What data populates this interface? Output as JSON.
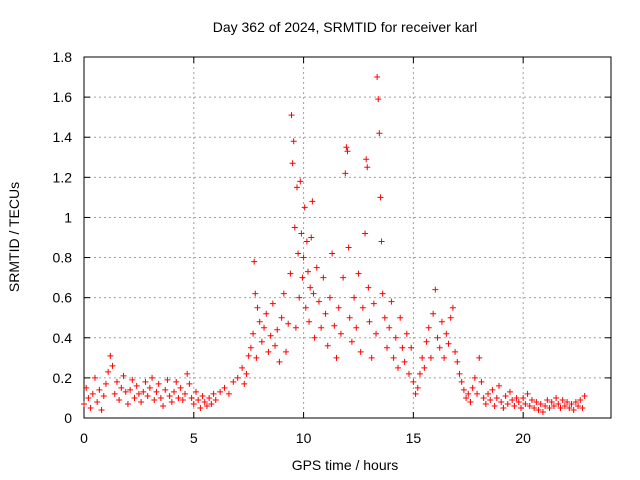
{
  "chart_data": {
    "type": "scatter",
    "title": "Day 362 of 2024, SRMTID for receiver karl",
    "xlabel": "GPS time / hours",
    "ylabel": "SRMTID / TECUs",
    "xlim": [
      0,
      24
    ],
    "ylim": [
      0,
      1.8
    ],
    "x_ticks": [
      0,
      5,
      10,
      15,
      20
    ],
    "x_tick_labels": [
      "0",
      "5",
      "10",
      "15",
      "20"
    ],
    "y_ticks": [
      0,
      0.2,
      0.4,
      0.6,
      0.8,
      1.0,
      1.2,
      1.4,
      1.6,
      1.8
    ],
    "y_tick_labels": [
      "0",
      "0.2",
      "0.4",
      "0.6",
      "0.8",
      "1",
      "1.2",
      "1.4",
      "1.6",
      "1.8"
    ],
    "grid": true,
    "marker": "+",
    "series_color": "#ff0000",
    "series": [
      {
        "name": "SRMTID",
        "points": [
          [
            0.0,
            0.07
          ],
          [
            0.1,
            0.15
          ],
          [
            0.2,
            0.1
          ],
          [
            0.3,
            0.05
          ],
          [
            0.4,
            0.12
          ],
          [
            0.5,
            0.2
          ],
          [
            0.6,
            0.08
          ],
          [
            0.7,
            0.14
          ],
          [
            0.8,
            0.04
          ],
          [
            0.9,
            0.11
          ],
          [
            1.0,
            0.17
          ],
          [
            1.1,
            0.23
          ],
          [
            1.2,
            0.31
          ],
          [
            1.3,
            0.26
          ],
          [
            1.4,
            0.12
          ],
          [
            1.5,
            0.18
          ],
          [
            1.6,
            0.09
          ],
          [
            1.7,
            0.15
          ],
          [
            1.8,
            0.21
          ],
          [
            1.9,
            0.13
          ],
          [
            2.0,
            0.07
          ],
          [
            2.1,
            0.14
          ],
          [
            2.2,
            0.19
          ],
          [
            2.3,
            0.1
          ],
          [
            2.4,
            0.16
          ],
          [
            2.5,
            0.12
          ],
          [
            2.6,
            0.08
          ],
          [
            2.7,
            0.13
          ],
          [
            2.8,
            0.18
          ],
          [
            2.9,
            0.11
          ],
          [
            3.0,
            0.15
          ],
          [
            3.1,
            0.2
          ],
          [
            3.2,
            0.09
          ],
          [
            3.3,
            0.13
          ],
          [
            3.4,
            0.17
          ],
          [
            3.5,
            0.1
          ],
          [
            3.6,
            0.06
          ],
          [
            3.7,
            0.14
          ],
          [
            3.8,
            0.19
          ],
          [
            3.9,
            0.11
          ],
          [
            4.0,
            0.08
          ],
          [
            4.1,
            0.13
          ],
          [
            4.2,
            0.18
          ],
          [
            4.3,
            0.1
          ],
          [
            4.4,
            0.15
          ],
          [
            4.5,
            0.09
          ],
          [
            4.6,
            0.12
          ],
          [
            4.7,
            0.22
          ],
          [
            4.8,
            0.17
          ],
          [
            4.9,
            0.1
          ],
          [
            5.0,
            0.07
          ],
          [
            5.1,
            0.13
          ],
          [
            5.2,
            0.09
          ],
          [
            5.3,
            0.05
          ],
          [
            5.4,
            0.11
          ],
          [
            5.5,
            0.08
          ],
          [
            5.6,
            0.06
          ],
          [
            5.7,
            0.1
          ],
          [
            5.8,
            0.07
          ],
          [
            5.9,
            0.12
          ],
          [
            6.0,
            0.09
          ],
          [
            6.2,
            0.13
          ],
          [
            6.4,
            0.15
          ],
          [
            6.6,
            0.12
          ],
          [
            6.8,
            0.18
          ],
          [
            7.0,
            0.2
          ],
          [
            7.2,
            0.25
          ],
          [
            7.3,
            0.17
          ],
          [
            7.4,
            0.22
          ],
          [
            7.5,
            0.31
          ],
          [
            7.6,
            0.35
          ],
          [
            7.7,
            0.42
          ],
          [
            7.75,
            0.78
          ],
          [
            7.8,
            0.62
          ],
          [
            7.85,
            0.3
          ],
          [
            7.9,
            0.55
          ],
          [
            8.0,
            0.48
          ],
          [
            8.1,
            0.38
          ],
          [
            8.2,
            0.45
          ],
          [
            8.3,
            0.52
          ],
          [
            8.4,
            0.33
          ],
          [
            8.5,
            0.41
          ],
          [
            8.6,
            0.57
          ],
          [
            8.7,
            0.36
          ],
          [
            8.8,
            0.44
          ],
          [
            8.9,
            0.28
          ],
          [
            9.0,
            0.5
          ],
          [
            9.1,
            0.62
          ],
          [
            9.2,
            0.33
          ],
          [
            9.3,
            0.47
          ],
          [
            9.4,
            0.72
          ],
          [
            9.45,
            1.51
          ],
          [
            9.5,
            1.27
          ],
          [
            9.55,
            1.38
          ],
          [
            9.6,
            0.95
          ],
          [
            9.65,
            0.45
          ],
          [
            9.7,
            1.15
          ],
          [
            9.75,
            0.82
          ],
          [
            9.8,
            0.6
          ],
          [
            9.85,
            1.18
          ],
          [
            9.9,
            0.92
          ],
          [
            9.95,
            0.7
          ],
          [
            10.0,
            0.8
          ],
          [
            10.05,
            1.05
          ],
          [
            10.1,
            0.55
          ],
          [
            10.15,
            0.88
          ],
          [
            10.2,
            0.73
          ],
          [
            10.25,
            0.48
          ],
          [
            10.3,
            0.65
          ],
          [
            10.35,
            0.9
          ],
          [
            10.4,
            1.08
          ],
          [
            10.45,
            0.62
          ],
          [
            10.5,
            0.4
          ],
          [
            10.6,
            0.75
          ],
          [
            10.7,
            0.58
          ],
          [
            10.8,
            0.45
          ],
          [
            10.9,
            0.7
          ],
          [
            11.0,
            0.52
          ],
          [
            11.1,
            0.36
          ],
          [
            11.2,
            0.6
          ],
          [
            11.3,
            0.82
          ],
          [
            11.4,
            0.46
          ],
          [
            11.5,
            0.3
          ],
          [
            11.6,
            0.55
          ],
          [
            11.7,
            0.42
          ],
          [
            11.8,
            0.7
          ],
          [
            11.9,
            1.22
          ],
          [
            11.95,
            1.35
          ],
          [
            12.0,
            1.33
          ],
          [
            12.05,
            0.85
          ],
          [
            12.1,
            0.5
          ],
          [
            12.2,
            0.38
          ],
          [
            12.3,
            0.6
          ],
          [
            12.4,
            0.45
          ],
          [
            12.5,
            0.72
          ],
          [
            12.6,
            0.33
          ],
          [
            12.7,
            0.55
          ],
          [
            12.8,
            0.92
          ],
          [
            12.85,
            1.29
          ],
          [
            12.9,
            1.25
          ],
          [
            12.95,
            0.65
          ],
          [
            13.0,
            0.48
          ],
          [
            13.1,
            0.3
          ],
          [
            13.2,
            0.57
          ],
          [
            13.3,
            0.42
          ],
          [
            13.35,
            1.7
          ],
          [
            13.4,
            1.59
          ],
          [
            13.45,
            1.42
          ],
          [
            13.5,
            1.1
          ],
          [
            13.55,
            0.88
          ],
          [
            13.6,
            0.62
          ],
          [
            13.7,
            0.5
          ],
          [
            13.8,
            0.35
          ],
          [
            13.9,
            0.45
          ],
          [
            14.0,
            0.58
          ],
          [
            14.1,
            0.3
          ],
          [
            14.2,
            0.4
          ],
          [
            14.3,
            0.25
          ],
          [
            14.4,
            0.5
          ],
          [
            14.5,
            0.35
          ],
          [
            14.6,
            0.28
          ],
          [
            14.7,
            0.42
          ],
          [
            14.8,
            0.22
          ],
          [
            14.9,
            0.35
          ],
          [
            15.0,
            0.18
          ],
          [
            15.1,
            0.12
          ],
          [
            15.2,
            0.15
          ],
          [
            15.3,
            0.22
          ],
          [
            15.4,
            0.3
          ],
          [
            15.5,
            0.25
          ],
          [
            15.6,
            0.38
          ],
          [
            15.7,
            0.45
          ],
          [
            15.8,
            0.3
          ],
          [
            15.9,
            0.52
          ],
          [
            16.0,
            0.64
          ],
          [
            16.1,
            0.4
          ],
          [
            16.2,
            0.35
          ],
          [
            16.3,
            0.48
          ],
          [
            16.4,
            0.3
          ],
          [
            16.5,
            0.42
          ],
          [
            16.6,
            0.37
          ],
          [
            16.7,
            0.5
          ],
          [
            16.8,
            0.55
          ],
          [
            16.9,
            0.33
          ],
          [
            17.0,
            0.28
          ],
          [
            17.1,
            0.22
          ],
          [
            17.2,
            0.18
          ],
          [
            17.3,
            0.14
          ],
          [
            17.4,
            0.1
          ],
          [
            17.5,
            0.12
          ],
          [
            17.6,
            0.08
          ],
          [
            17.7,
            0.15
          ],
          [
            17.8,
            0.2
          ],
          [
            17.9,
            0.12
          ],
          [
            18.0,
            0.3
          ],
          [
            18.1,
            0.18
          ],
          [
            18.2,
            0.1
          ],
          [
            18.3,
            0.07
          ],
          [
            18.4,
            0.12
          ],
          [
            18.5,
            0.09
          ],
          [
            18.6,
            0.14
          ],
          [
            18.7,
            0.06
          ],
          [
            18.8,
            0.1
          ],
          [
            18.9,
            0.16
          ],
          [
            19.0,
            0.08
          ],
          [
            19.1,
            0.05
          ],
          [
            19.2,
            0.11
          ],
          [
            19.3,
            0.07
          ],
          [
            19.4,
            0.13
          ],
          [
            19.5,
            0.09
          ],
          [
            19.6,
            0.06
          ],
          [
            19.7,
            0.1
          ],
          [
            19.8,
            0.08
          ],
          [
            19.9,
            0.05
          ],
          [
            20.0,
            0.1
          ],
          [
            20.1,
            0.07
          ],
          [
            20.2,
            0.12
          ],
          [
            20.3,
            0.06
          ],
          [
            20.4,
            0.09
          ],
          [
            20.5,
            0.05
          ],
          [
            20.6,
            0.08
          ],
          [
            20.7,
            0.04
          ],
          [
            20.8,
            0.07
          ],
          [
            20.9,
            0.03
          ],
          [
            21.0,
            0.06
          ],
          [
            21.1,
            0.09
          ],
          [
            21.2,
            0.05
          ],
          [
            21.3,
            0.08
          ],
          [
            21.4,
            0.06
          ],
          [
            21.5,
            0.1
          ],
          [
            21.6,
            0.07
          ],
          [
            21.7,
            0.05
          ],
          [
            21.8,
            0.09
          ],
          [
            21.9,
            0.06
          ],
          [
            22.0,
            0.08
          ],
          [
            22.1,
            0.05
          ],
          [
            22.2,
            0.07
          ],
          [
            22.3,
            0.04
          ],
          [
            22.4,
            0.08
          ],
          [
            22.5,
            0.06
          ],
          [
            22.6,
            0.09
          ],
          [
            22.7,
            0.05
          ],
          [
            22.8,
            0.11
          ]
        ]
      }
    ]
  }
}
